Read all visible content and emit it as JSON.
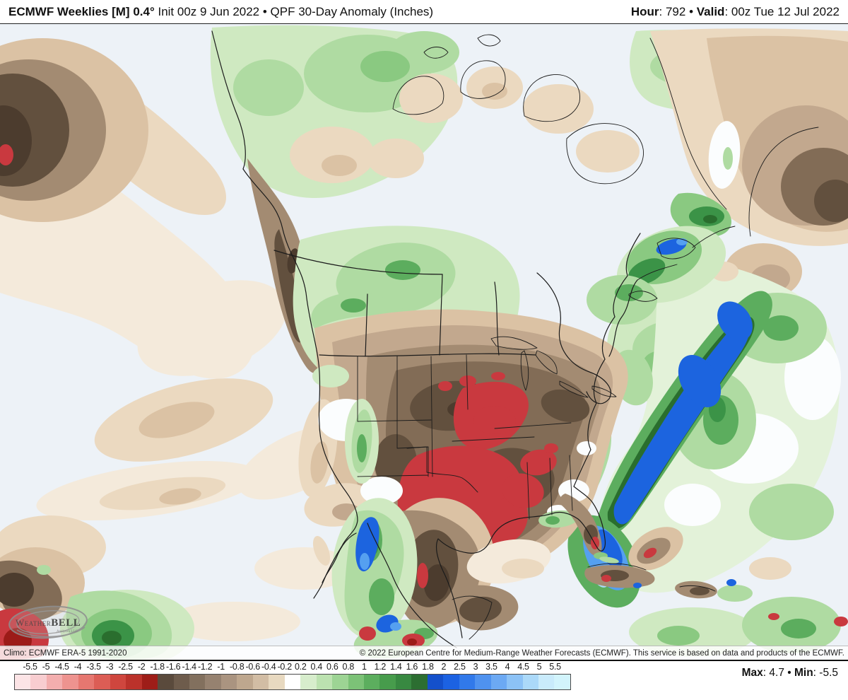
{
  "header": {
    "title_bold": "ECMWF Weeklies [M] 0.4°",
    "title_regular": " Init 00z 9 Jun 2022 • QPF 30-Day Anomaly (Inches)",
    "hour_label": "Hour",
    "hour_rest": ": 792 • ",
    "valid_label": "Valid",
    "valid_rest": ": 00z Tue 12 Jul 2022"
  },
  "map": {
    "attribution_left": "Climo: ECMWF ERA-5 1991-2020",
    "attribution_right": "© 2022 European Centre for Medium-Range Weather Forecasts (ECMWF). This service is based on data and products of the ECMWF.",
    "logo_name_regular": "Weather",
    "logo_name_bold": "BELL",
    "logo_subtext": "Analytics LLC"
  },
  "colorbar": {
    "tick_labels": [
      "-5.5",
      "-5",
      "-4.5",
      "-4",
      "-3.5",
      "-3",
      "-2.5",
      "-2",
      "-1.8",
      "-1.6",
      "-1.4",
      "-1.2",
      "-1",
      "-0.8",
      "-0.6",
      "-0.4",
      "-0.2",
      "0.2",
      "0.4",
      "0.6",
      "0.8",
      "1",
      "1.2",
      "1.4",
      "1.6",
      "1.8",
      "2",
      "2.5",
      "3",
      "3.5",
      "4",
      "4.5",
      "5",
      "5.5"
    ],
    "cell_colors": [
      "#fce4e6",
      "#f8cdd0",
      "#f3aeae",
      "#ee938f",
      "#e67770",
      "#dc5d55",
      "#cf463e",
      "#bb322b",
      "#9e1d18",
      "#5a4a3c",
      "#6e5c4c",
      "#82705e",
      "#968270",
      "#aa9480",
      "#bea78e",
      "#d2bda4",
      "#e8d9c0",
      "#ffffff",
      "#d7edcc",
      "#bce2b0",
      "#9dd494",
      "#7cc277",
      "#5cae5e",
      "#479c4c",
      "#388941",
      "#2c6e31",
      "#1450cb",
      "#1c62e2",
      "#3179ea",
      "#4f92ef",
      "#6ca9f3",
      "#8cc2f6",
      "#abd9f9",
      "#c9ebfb",
      "#d2f4fc"
    ],
    "unit": "Inches"
  },
  "stats": {
    "max_label": "Max",
    "max_rest": ": 4.7 • ",
    "min_label": "Min",
    "min_rest": ": -5.5"
  }
}
